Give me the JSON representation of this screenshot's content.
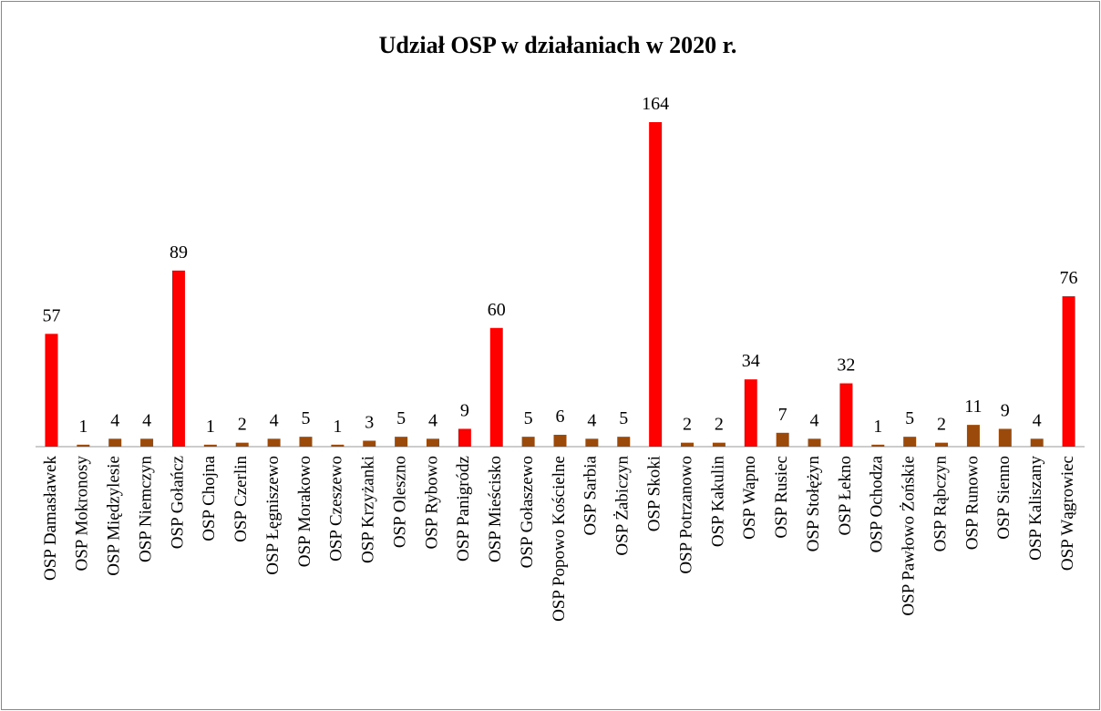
{
  "chart_data": {
    "type": "bar",
    "title": "Udział OSP w działaniach w 2020 r.",
    "categories": [
      "OSP Damasławek",
      "OSP Mokronosy",
      "OSP Międzylesie",
      "OSP Niemczyn",
      "OSP Gołańcz",
      "OSP Chojna",
      "OSP Czerlin",
      "OSP Łęgniszewo",
      "OSP Morakowo",
      "OSP Czeszewo",
      "OSP Krzyżanki",
      "OSP Oleszno",
      "OSP Rybowo",
      "OSP Panigródz",
      "OSP Mieścisko",
      "OSP Gołaszewo",
      "OSP Popowo Kościelne",
      "OSP Sarbia",
      "OSP Żabiczyn",
      "OSP Skoki",
      "OSP Potrzanowo",
      "OSP Kakulin",
      "OSP Wapno",
      "OSP Rusiec",
      "OSP Stołężyn",
      "OSP Łekno",
      "OSP Ochodza",
      "OSP Pawłowo Żońskie",
      "OSP Rąbczyn",
      "OSP Runowo",
      "OSP Sienno",
      "OSP Kaliszany",
      "OSP Wągrowiec"
    ],
    "values": [
      57,
      1,
      4,
      4,
      89,
      1,
      2,
      4,
      5,
      1,
      3,
      5,
      4,
      9,
      60,
      5,
      6,
      4,
      5,
      164,
      2,
      2,
      34,
      7,
      4,
      32,
      1,
      5,
      2,
      11,
      9,
      4,
      76
    ],
    "colors": [
      "#ff0000",
      "#9c4a0b",
      "#9c4a0b",
      "#9c4a0b",
      "#ff0000",
      "#9c4a0b",
      "#9c4a0b",
      "#9c4a0b",
      "#9c4a0b",
      "#9c4a0b",
      "#9c4a0b",
      "#9c4a0b",
      "#9c4a0b",
      "#ff0000",
      "#ff0000",
      "#9c4a0b",
      "#9c4a0b",
      "#9c4a0b",
      "#9c4a0b",
      "#ff0000",
      "#9c4a0b",
      "#9c4a0b",
      "#ff0000",
      "#9c4a0b",
      "#9c4a0b",
      "#ff0000",
      "#9c4a0b",
      "#9c4a0b",
      "#9c4a0b",
      "#9c4a0b",
      "#9c4a0b",
      "#9c4a0b",
      "#ff0000"
    ],
    "grid": false
  }
}
